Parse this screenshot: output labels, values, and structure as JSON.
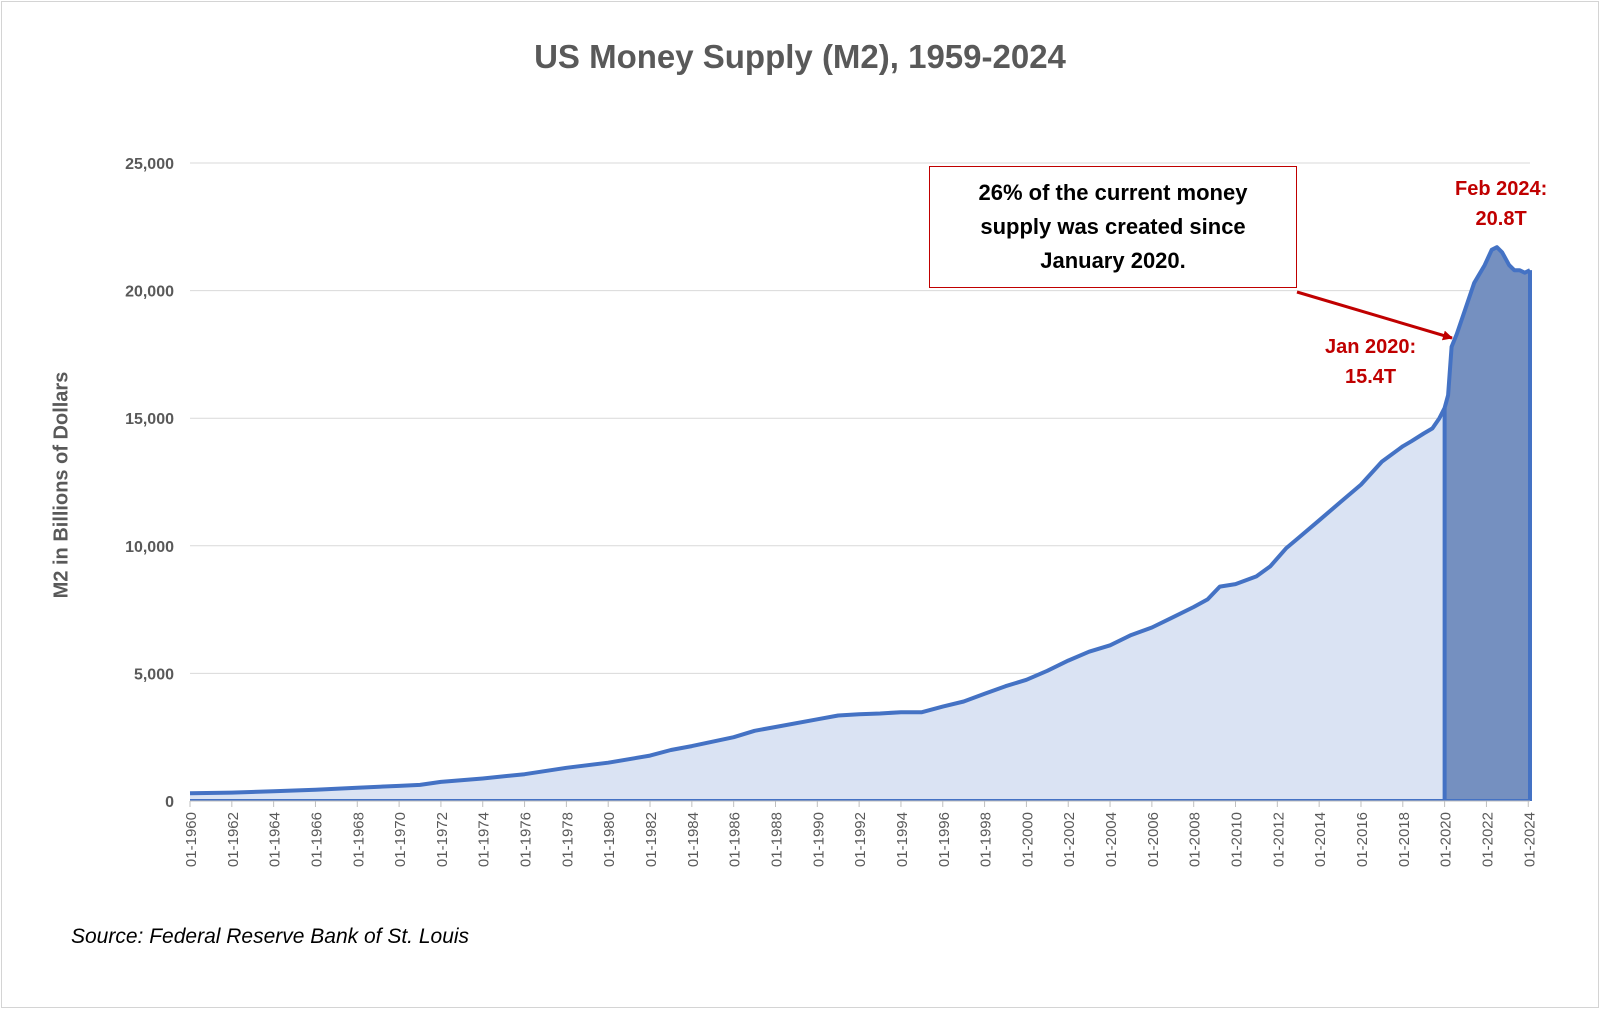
{
  "chart_data": {
    "type": "area",
    "title": "US Money Supply (M2), 1959-2024",
    "xlabel": "",
    "ylabel": "M2 in Billions of Dollars",
    "ylim": [
      0,
      25000
    ],
    "y_ticks": [
      "0",
      "5,000",
      "10,000",
      "15,000",
      "20,000",
      "25,000"
    ],
    "x_ticks": [
      "01-1960",
      "01-1962",
      "01-1964",
      "01-1966",
      "01-1968",
      "01-1970",
      "01-1972",
      "01-1974",
      "01-1976",
      "01-1978",
      "01-1980",
      "01-1982",
      "01-1984",
      "01-1986",
      "01-1988",
      "01-1990",
      "01-1992",
      "01-1994",
      "01-1996",
      "01-1998",
      "01-2000",
      "01-2002",
      "01-2004",
      "01-2006",
      "01-2008",
      "01-2010",
      "01-2012",
      "01-2014",
      "01-2016",
      "01-2018",
      "01-2020",
      "01-2022",
      "01-2024"
    ],
    "grid": true,
    "legend": "none",
    "colors": {
      "line": "#4472c4",
      "fill_before_2020": "#dae3f3",
      "fill_since_2020": "#7590c0",
      "annotation": "#c00000",
      "grid": "#d9d9d9",
      "axis_text": "#595959"
    },
    "series": [
      {
        "x": [
          "1960-01",
          "1962-01",
          "1964-01",
          "1966-01",
          "1968-01",
          "1970-01",
          "1971-01",
          "1972-01",
          "1974-01",
          "1976-01",
          "1978-01",
          "1980-01",
          "1982-01",
          "1983-01",
          "1984-01",
          "1986-01",
          "1987-01",
          "1988-01",
          "1990-01",
          "1991-01",
          "1992-01",
          "1993-01",
          "1994-01",
          "1995-01",
          "1996-01",
          "1997-01",
          "1998-01",
          "1999-01",
          "2000-01",
          "2001-01",
          "2002-01",
          "2003-01",
          "2004-01",
          "2005-01",
          "2006-01",
          "2007-01",
          "2008-01",
          "2008-09",
          "2009-04",
          "2010-01",
          "2011-01",
          "2011-09",
          "2012-06",
          "2013-01",
          "2014-01",
          "2015-01",
          "2016-01",
          "2017-01",
          "2018-01",
          "2018-06",
          "2019-01",
          "2019-06",
          "2019-10",
          "2020-01",
          "2020-03",
          "2020-05",
          "2020-08",
          "2021-01",
          "2021-06",
          "2021-12",
          "2022-04",
          "2022-07",
          "2022-10",
          "2023-02",
          "2023-05",
          "2023-08",
          "2023-11",
          "2024-02"
        ],
        "values": [
          300,
          330,
          380,
          440,
          520,
          590,
          630,
          750,
          880,
          1050,
          1300,
          1500,
          1780,
          2000,
          2150,
          2500,
          2750,
          2900,
          3200,
          3350,
          3400,
          3430,
          3480,
          3480,
          3700,
          3900,
          4200,
          4500,
          4750,
          5100,
          5500,
          5850,
          6100,
          6500,
          6800,
          7200,
          7600,
          7900,
          8400,
          8500,
          8800,
          9200,
          9900,
          10300,
          11000,
          11700,
          12400,
          13300,
          13900,
          14100,
          14400,
          14600,
          15000,
          15400,
          15900,
          17800,
          18300,
          19300,
          20300,
          21000,
          21600,
          21700,
          21500,
          21000,
          20800,
          20800,
          20700,
          20800
        ]
      }
    ],
    "annotations": [
      {
        "text": "26% of the current money supply was created since January 2020."
      },
      {
        "line1": "Jan 2020:",
        "line2": "15.4T"
      },
      {
        "line1": "Feb 2024:",
        "line2": "20.8T"
      }
    ],
    "source": "Source: Federal Reserve Bank of St. Louis"
  }
}
